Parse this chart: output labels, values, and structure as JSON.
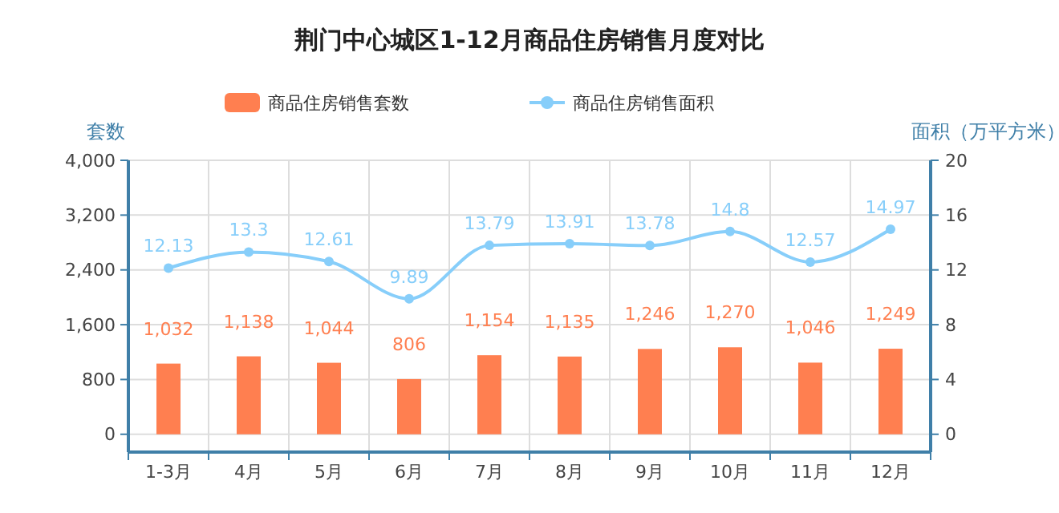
{
  "chart_data": {
    "type": "bar",
    "title": "荆门中心城区1-12月商品住房销售月度对比",
    "ylabel": "套数",
    "y2label": "面积（万平方米）",
    "categories": [
      "1-3月",
      "4月",
      "5月",
      "6月",
      "7月",
      "8月",
      "9月",
      "10月",
      "11月",
      "12月"
    ],
    "series": [
      {
        "name": "商品住房销售套数",
        "color": "#ff7f50",
        "values": [
          1032,
          1138,
          1044,
          806,
          1154,
          1135,
          1246,
          1270,
          1046,
          1249
        ],
        "value_labels": [
          "1,032",
          "1,138",
          "1,044",
          "806",
          "1,154",
          "1,135",
          "1,246",
          "1,270",
          "1,046",
          "1,249"
        ]
      },
      {
        "name": "商品住房销售面积",
        "type": "line",
        "axis": "y2",
        "color": "#87cefa",
        "values": [
          12.13,
          13.3,
          12.61,
          9.89,
          13.79,
          13.91,
          13.78,
          14.8,
          12.57,
          14.97
        ]
      }
    ],
    "ylim": [
      -260,
      4000
    ],
    "yticks": [
      0,
      {
        "value": 800,
        "label": "800"
      },
      {
        "value": 1600,
        "label": "1,600"
      },
      {
        "value": 2400,
        "label": "2,400"
      },
      {
        "value": 3200,
        "label": "3,200"
      },
      {
        "value": 4000,
        "label": "4,000"
      }
    ],
    "y2lim": [
      -1.3,
      20
    ],
    "y2ticks": [
      0,
      4,
      8,
      12,
      16,
      20
    ],
    "grid": true,
    "legend": "top",
    "marker": "circle",
    "line_style": "solid",
    "data_labels": true
  }
}
